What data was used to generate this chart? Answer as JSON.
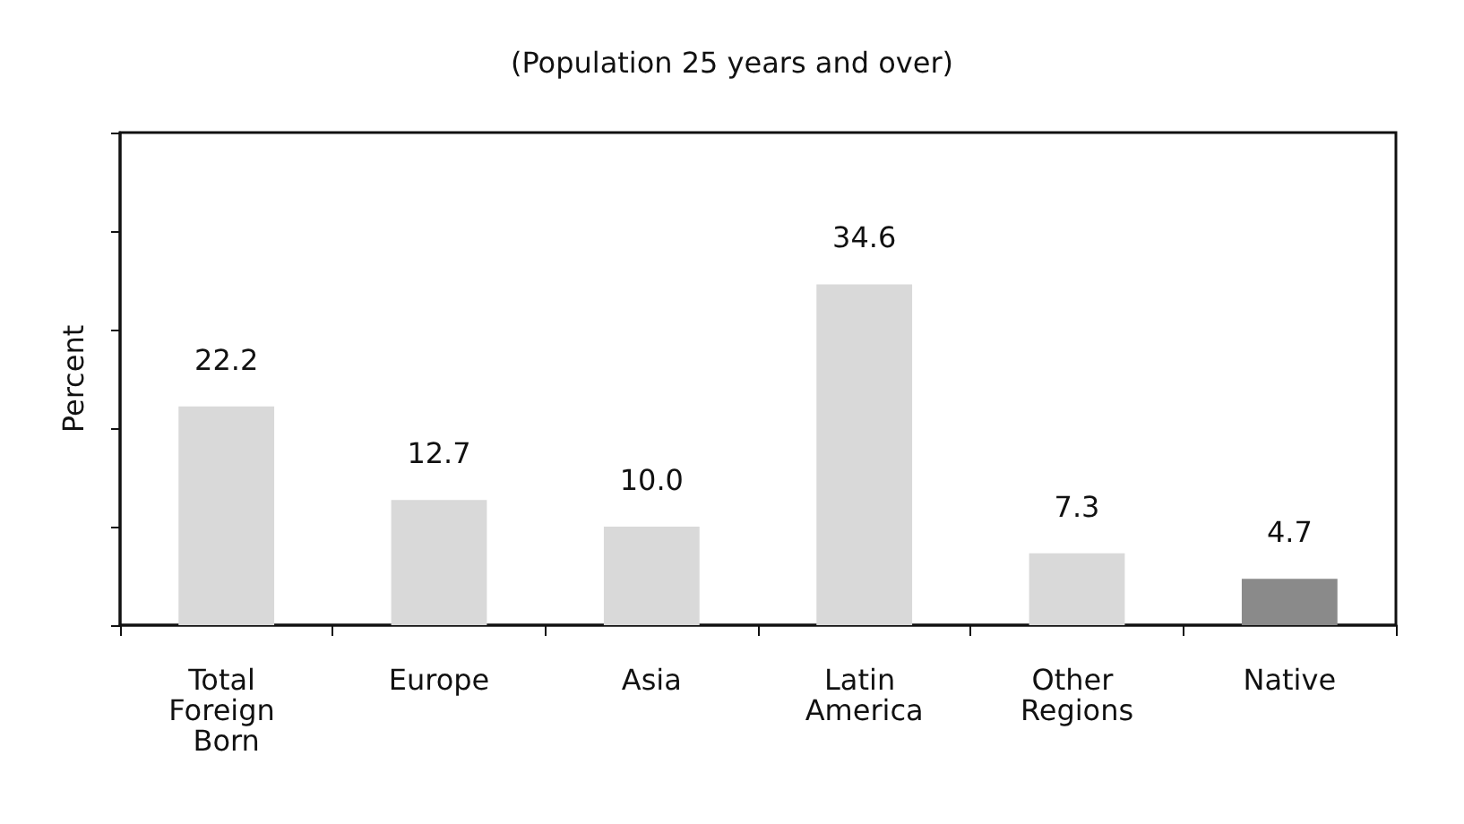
{
  "chart_data": {
    "type": "bar",
    "title": "(Population 25 years and over)",
    "ylabel": "Percent",
    "categories": [
      "Total Foreign Born",
      "Europe",
      "Asia",
      "Latin America",
      "Other Regions",
      "Native"
    ],
    "values": [
      22.2,
      12.7,
      10.0,
      34.6,
      7.3,
      4.7
    ],
    "colors": [
      "#d9d9d9",
      "#d9d9d9",
      "#d9d9d9",
      "#d9d9d9",
      "#d9d9d9",
      "#8a8a8a"
    ],
    "ylim": [
      0,
      50
    ],
    "yticks": [
      {
        "value": 0,
        "label": null
      },
      {
        "value": 10,
        "label": null
      },
      {
        "value": 20,
        "label": null
      },
      {
        "value": 30,
        "label": null
      },
      {
        "value": 40,
        "label": null
      },
      {
        "value": 50,
        "label": null
      }
    ],
    "value_labels": [
      "22.2",
      "12.7",
      "10.0",
      "34.6",
      "7.3",
      "4.7"
    ],
    "grid": false
  }
}
